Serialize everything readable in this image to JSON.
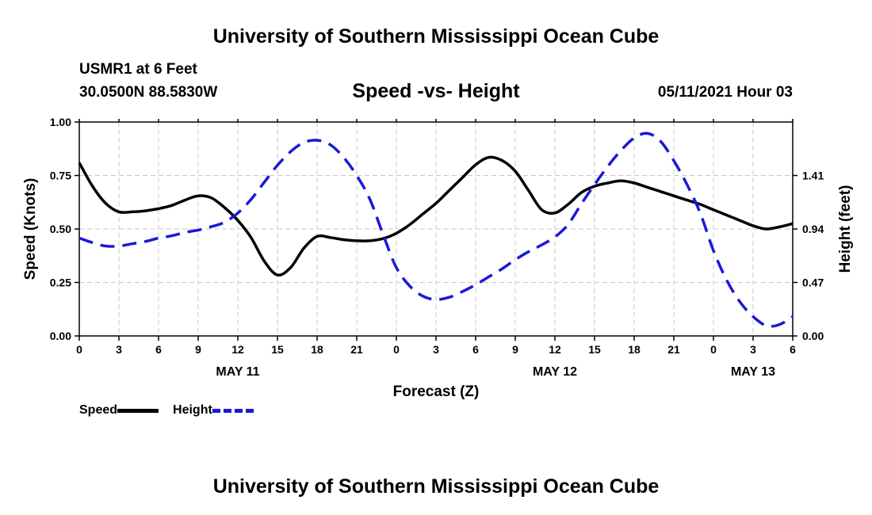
{
  "header": {
    "title": "University of Southern Mississippi Ocean Cube",
    "station": "USMR1 at 6 Feet",
    "coords": "30.0500N  88.5830W",
    "chart_title": "Speed -vs- Height",
    "datetime": "05/11/2021 Hour 03"
  },
  "footer": {
    "title": "University of Southern Mississippi Ocean Cube"
  },
  "legend": {
    "speed": "Speed",
    "height": "Height"
  },
  "colors": {
    "speed": "#000000",
    "height": "#1a1ad6",
    "grid": "#c8c8c8"
  },
  "chart_data": {
    "type": "line",
    "title": "Speed -vs- Height",
    "xlabel": "Forecast (Z)",
    "ylabel": "Speed (Knots)",
    "y2label": "Height (feet)",
    "xlim": [
      0,
      54
    ],
    "ylim": [
      0,
      1.0
    ],
    "y2lim": [
      0,
      1.88
    ],
    "x_ticks": [
      0,
      3,
      6,
      9,
      12,
      15,
      18,
      21,
      24,
      27,
      30,
      33,
      36,
      39,
      42,
      45,
      48,
      51,
      54
    ],
    "x_tick_labels": [
      "0",
      "3",
      "6",
      "9",
      "12",
      "15",
      "18",
      "21",
      "0",
      "3",
      "6",
      "9",
      "12",
      "15",
      "18",
      "21",
      "0",
      "3",
      "6"
    ],
    "y_ticks": [
      0,
      0.25,
      0.5,
      0.75,
      1.0
    ],
    "y_tick_labels": [
      "0.00",
      "0.25",
      "0.50",
      "0.75",
      "1.00"
    ],
    "y2_ticks": [
      0,
      0.47,
      0.94,
      1.41
    ],
    "y2_tick_labels": [
      "0.00",
      "0.47",
      "0.94",
      "1.41"
    ],
    "date_labels": [
      {
        "x": 12,
        "text": "MAY 11"
      },
      {
        "x": 36,
        "text": "MAY 12"
      },
      {
        "x": 51,
        "text": "MAY 13"
      }
    ],
    "grid": true,
    "legend_position": "bottom-left",
    "series": [
      {
        "name": "Speed",
        "axis": "left",
        "style": "solid",
        "x": [
          0,
          1,
          2,
          3,
          4,
          5,
          6,
          7,
          8,
          9,
          10,
          11,
          12,
          13,
          14,
          15,
          16,
          17,
          18,
          19,
          20,
          21,
          22,
          23,
          24,
          25,
          26,
          27,
          28,
          29,
          30,
          31,
          32,
          33,
          34,
          35,
          36,
          37,
          38,
          39,
          40,
          41,
          42,
          43,
          44,
          45,
          46,
          47,
          48,
          49,
          50,
          51,
          52,
          53,
          54
        ],
        "values": [
          0.81,
          0.7,
          0.62,
          0.58,
          0.58,
          0.585,
          0.595,
          0.61,
          0.635,
          0.655,
          0.645,
          0.6,
          0.54,
          0.46,
          0.35,
          0.285,
          0.32,
          0.41,
          0.465,
          0.46,
          0.45,
          0.445,
          0.445,
          0.455,
          0.48,
          0.52,
          0.57,
          0.62,
          0.68,
          0.74,
          0.8,
          0.835,
          0.82,
          0.77,
          0.68,
          0.59,
          0.575,
          0.615,
          0.67,
          0.7,
          0.715,
          0.725,
          0.715,
          0.695,
          0.675,
          0.655,
          0.635,
          0.615,
          0.59,
          0.565,
          0.54,
          0.515,
          0.5,
          0.51,
          0.525
        ]
      },
      {
        "name": "Height",
        "axis": "right",
        "style": "dashed",
        "x": [
          0,
          1,
          2,
          3,
          4,
          5,
          6,
          7,
          8,
          9,
          10,
          11,
          12,
          13,
          14,
          15,
          16,
          17,
          18,
          19,
          20,
          21,
          22,
          23,
          24,
          25,
          26,
          27,
          28,
          29,
          30,
          31,
          32,
          33,
          34,
          35,
          36,
          37,
          38,
          39,
          40,
          41,
          42,
          43,
          44,
          45,
          46,
          47,
          48,
          49,
          50,
          51,
          52,
          53,
          54
        ],
        "values": [
          0.86,
          0.82,
          0.79,
          0.79,
          0.81,
          0.83,
          0.86,
          0.88,
          0.91,
          0.93,
          0.96,
          1.0,
          1.08,
          1.2,
          1.35,
          1.5,
          1.62,
          1.7,
          1.72,
          1.68,
          1.57,
          1.41,
          1.2,
          0.89,
          0.6,
          0.44,
          0.35,
          0.32,
          0.34,
          0.39,
          0.45,
          0.52,
          0.59,
          0.67,
          0.74,
          0.8,
          0.87,
          0.98,
          1.16,
          1.33,
          1.49,
          1.63,
          1.74,
          1.78,
          1.71,
          1.54,
          1.33,
          1.08,
          0.75,
          0.49,
          0.3,
          0.17,
          0.09,
          0.1,
          0.17
        ]
      }
    ]
  }
}
